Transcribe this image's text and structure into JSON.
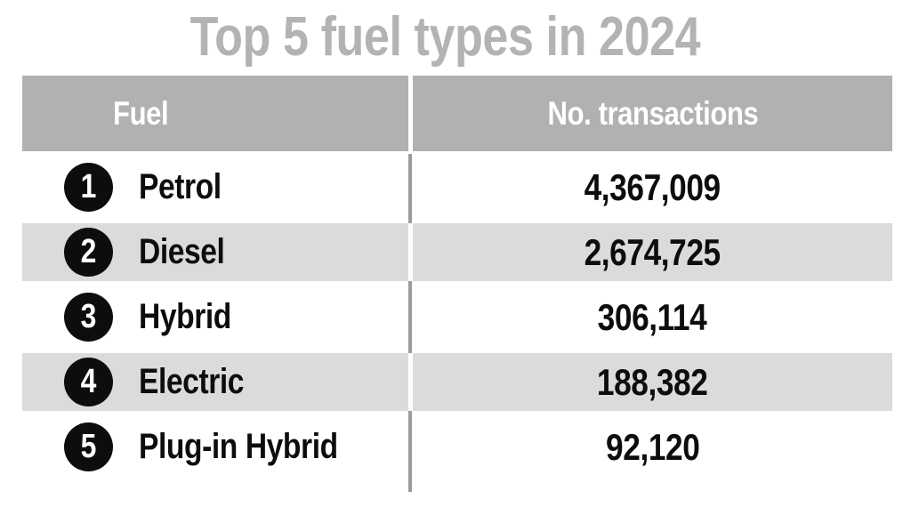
{
  "title": "Top 5 fuel types in 2024",
  "table": {
    "columns": [
      {
        "label": "Fuel"
      },
      {
        "label": "No. transactions"
      }
    ],
    "rows": [
      {
        "rank": "1",
        "fuel": "Petrol",
        "transactions": "4,367,009"
      },
      {
        "rank": "2",
        "fuel": "Diesel",
        "transactions": "2,674,725"
      },
      {
        "rank": "3",
        "fuel": "Hybrid",
        "transactions": "306,114"
      },
      {
        "rank": "4",
        "fuel": "Electric",
        "transactions": "188,382"
      },
      {
        "rank": "5",
        "fuel": "Plug-in Hybrid",
        "transactions": "92,120"
      }
    ]
  },
  "colors": {
    "title_text": "#b3b3b3",
    "header_background": "#b1b1b1",
    "header_text": "#ffffff",
    "stripe_background": "#dbdbdb",
    "divider_gray": "#9b9b9b",
    "rank_badge_background": "#0d0d0d",
    "rank_badge_text": "#ffffff",
    "body_text": "#0d0d0d"
  },
  "chart_data": {
    "type": "table",
    "title": "Top 5 fuel types in 2024",
    "columns": [
      "Fuel",
      "No. transactions"
    ],
    "categories": [
      "Petrol",
      "Diesel",
      "Hybrid",
      "Electric",
      "Plug-in Hybrid"
    ],
    "values": [
      4367009,
      2674725,
      306114,
      188382,
      92120
    ],
    "layout": {
      "zebra_striping": true,
      "ranked": true,
      "legend": "none"
    }
  }
}
